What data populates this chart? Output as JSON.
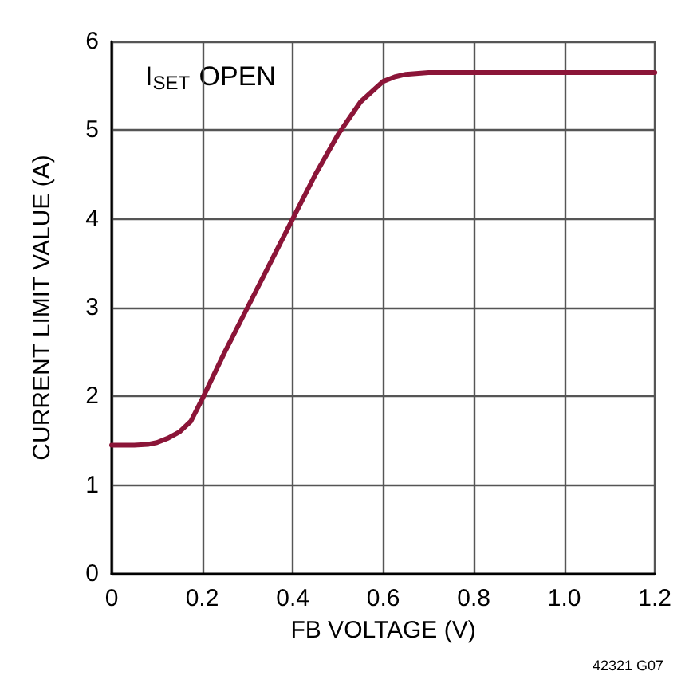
{
  "chart_data": {
    "type": "line",
    "xlabel": "FB VOLTAGE (V)",
    "ylabel": "CURRENT LIMIT VALUE (A)",
    "annotations": [
      {
        "text": "I$_{SET}$ OPEN"
      },
      {
        "text": "42321 G07"
      }
    ],
    "series": [
      {
        "color": "#8b1538",
        "x": [
          0,
          0.05,
          0.08,
          0.1,
          0.125,
          0.15,
          0.175,
          0.2,
          0.25,
          0.3,
          0.35,
          0.4,
          0.45,
          0.5,
          0.55,
          0.6,
          0.625,
          0.65,
          0.7,
          0.8,
          0.9,
          1.0,
          1.1,
          1.2
        ],
        "values": [
          1.45,
          1.45,
          1.46,
          1.48,
          1.53,
          1.6,
          1.72,
          1.97,
          2.5,
          3.0,
          3.5,
          4.0,
          4.5,
          4.95,
          5.32,
          5.55,
          5.6,
          5.63,
          5.65,
          5.65,
          5.65,
          5.65,
          5.65,
          5.65
        ]
      }
    ],
    "xlim": [
      0,
      1.2
    ],
    "xticks": [
      {
        "value": 0,
        "label": "0"
      },
      {
        "value": 0.2,
        "label": "0.2"
      },
      {
        "value": 0.4,
        "label": "0.4"
      },
      {
        "value": 0.6,
        "label": "0.6"
      },
      {
        "value": 0.8,
        "label": "0.8"
      },
      {
        "value": 1.0,
        "label": "1.0"
      },
      {
        "value": 1.2,
        "label": "1.2"
      }
    ],
    "ylim": [
      0,
      6
    ],
    "yticks": [
      0,
      1,
      2,
      3,
      4,
      5,
      6
    ],
    "grid": true,
    "marker": "none",
    "line_style": "solid"
  }
}
